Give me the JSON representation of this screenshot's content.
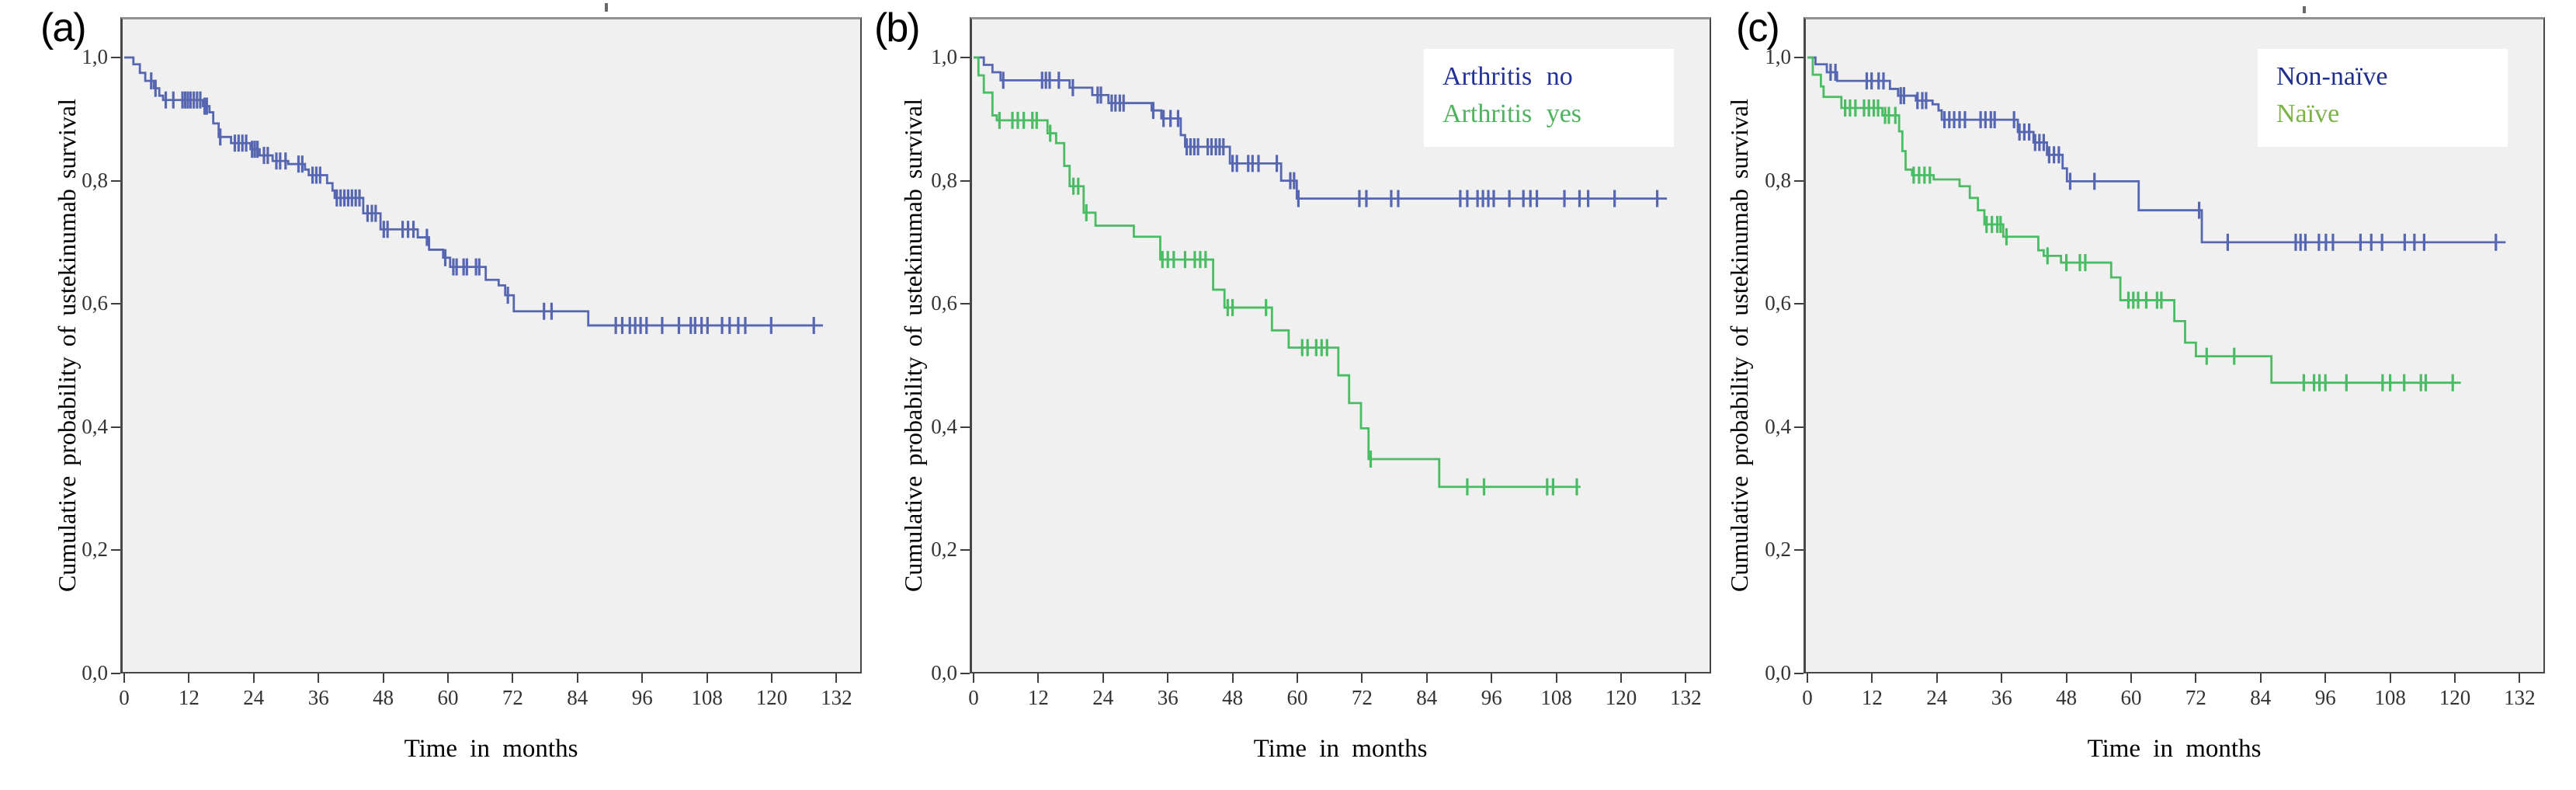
{
  "chart_data": [
    {
      "type": "line",
      "subtype": "kaplan-meier-step",
      "panel_label": "(a)",
      "xlabel": "Time in months",
      "ylabel": "Cumulative probability of ustekinumab survival",
      "xlim": [
        0,
        137
      ],
      "ylim": [
        0,
        1.0
      ],
      "grid": false,
      "x_ticks": [
        0,
        12,
        24,
        36,
        48,
        60,
        72,
        84,
        96,
        108,
        120,
        132
      ],
      "y_ticks": [
        {
          "value": 0.0,
          "label": "0,0"
        },
        {
          "value": 0.2,
          "label": "0,2"
        },
        {
          "value": 0.4,
          "label": "0,4"
        },
        {
          "value": 0.6,
          "label": "0,6"
        },
        {
          "value": 0.8,
          "label": "0,8"
        },
        {
          "value": 1.0,
          "label": "1,0"
        }
      ],
      "legend": null,
      "series": [
        {
          "color": "#5666b0",
          "end_time": 129.5,
          "steps": [
            [
              0,
              1.0
            ],
            [
              1.7,
              0.989
            ],
            [
              2.9,
              0.975
            ],
            [
              3.9,
              0.962
            ],
            [
              5.5,
              0.95
            ],
            [
              6.5,
              0.938
            ],
            [
              7.2,
              0.931
            ],
            [
              14.6,
              0.921
            ],
            [
              15.8,
              0.911
            ],
            [
              16.5,
              0.893
            ],
            [
              17.5,
              0.871
            ],
            [
              19.8,
              0.861
            ],
            [
              23.4,
              0.851
            ],
            [
              25.1,
              0.841
            ],
            [
              27.5,
              0.832
            ],
            [
              30.4,
              0.827
            ],
            [
              33.5,
              0.818
            ],
            [
              34.2,
              0.809
            ],
            [
              37.6,
              0.796
            ],
            [
              38.6,
              0.784
            ],
            [
              39.0,
              0.772
            ],
            [
              44.3,
              0.747
            ],
            [
              47.5,
              0.721
            ],
            [
              54.4,
              0.708
            ],
            [
              56.5,
              0.688
            ],
            [
              59.1,
              0.675
            ],
            [
              60.4,
              0.66
            ],
            [
              67.0,
              0.639
            ],
            [
              69.4,
              0.63
            ],
            [
              70.6,
              0.614
            ],
            [
              72.2,
              0.588
            ],
            [
              86.0,
              0.565
            ]
          ],
          "censor_times": [
            5.0,
            5.8,
            7.7,
            9.1,
            10.8,
            11.3,
            11.8,
            12.3,
            12.9,
            13.5,
            14.1,
            14.9,
            15.3,
            17.8,
            20.5,
            21.2,
            21.9,
            22.6,
            23.7,
            24.2,
            24.7,
            25.9,
            26.6,
            28.2,
            28.9,
            29.9,
            32.3,
            33.0,
            34.9,
            35.6,
            36.3,
            39.4,
            40.1,
            40.8,
            41.5,
            42.2,
            42.9,
            43.6,
            45.1,
            45.9,
            46.6,
            48.1,
            48.8,
            51.6,
            52.6,
            53.6,
            56.1,
            59.5,
            61.0,
            61.6,
            62.9,
            63.5,
            65.2,
            65.8,
            71.1,
            77.8,
            79.2,
            91.1,
            92.3,
            93.7,
            94.7,
            95.7,
            96.8,
            99.7,
            102.8,
            105.0,
            105.8,
            107.0,
            108.1,
            110.8,
            112.2,
            113.8,
            115.1,
            119.9,
            127.8
          ]
        }
      ]
    },
    {
      "type": "line",
      "subtype": "kaplan-meier-step",
      "panel_label": "(b)",
      "xlabel": "Time in months",
      "ylabel": "Cumulative probability of ustekinumab survival",
      "xlim": [
        0,
        137
      ],
      "ylim": [
        0,
        1.0
      ],
      "grid": false,
      "x_ticks": [
        0,
        12,
        24,
        36,
        48,
        60,
        72,
        84,
        96,
        108,
        120,
        132
      ],
      "y_ticks": [
        {
          "value": 0.0,
          "label": "0,0"
        },
        {
          "value": 0.2,
          "label": "0,2"
        },
        {
          "value": 0.4,
          "label": "0,4"
        },
        {
          "value": 0.6,
          "label": "0,6"
        },
        {
          "value": 0.8,
          "label": "0,8"
        },
        {
          "value": 1.0,
          "label": "1,0"
        }
      ],
      "legend": {
        "position": "top-right",
        "items": [
          {
            "label": "Arthritis no",
            "color": "#23309b"
          },
          {
            "label": "Arthritis yes",
            "color": "#4db35e"
          }
        ]
      },
      "series": [
        {
          "name": "Arthritis no",
          "color": "#5666b0",
          "end_time": 128.5,
          "steps": [
            [
              0,
              1.0
            ],
            [
              1.9,
              0.988
            ],
            [
              3.5,
              0.976
            ],
            [
              5.0,
              0.963
            ],
            [
              17.8,
              0.951
            ],
            [
              22.0,
              0.939
            ],
            [
              25.0,
              0.926
            ],
            [
              33.0,
              0.914
            ],
            [
              34.8,
              0.901
            ],
            [
              38.4,
              0.874
            ],
            [
              39.2,
              0.855
            ],
            [
              47.5,
              0.828
            ],
            [
              57.0,
              0.8
            ],
            [
              59.9,
              0.771
            ]
          ],
          "censor_times": [
            5.5,
            12.7,
            13.4,
            14.1,
            15.8,
            18.4,
            23.0,
            23.6,
            25.6,
            26.3,
            27.1,
            27.8,
            33.3,
            35.2,
            36.5,
            37.9,
            39.5,
            40.2,
            40.9,
            41.6,
            43.4,
            44.1,
            44.9,
            45.6,
            46.3,
            48.0,
            48.8,
            50.9,
            51.7,
            52.8,
            56.2,
            58.7,
            59.4,
            60.2,
            71.5,
            72.8,
            77.4,
            78.7,
            90.2,
            91.5,
            93.4,
            94.4,
            95.4,
            96.4,
            99.3,
            101.9,
            103.2,
            104.4,
            109.5,
            112.3,
            113.9,
            118.8,
            126.7
          ]
        },
        {
          "name": "Arthritis yes",
          "color": "#4abc64",
          "end_time": 112.5,
          "steps": [
            [
              0,
              1.0
            ],
            [
              0.9,
              0.971
            ],
            [
              1.9,
              0.943
            ],
            [
              3.5,
              0.906
            ],
            [
              4.3,
              0.898
            ],
            [
              13.7,
              0.877
            ],
            [
              15.3,
              0.861
            ],
            [
              16.8,
              0.824
            ],
            [
              17.8,
              0.791
            ],
            [
              20.4,
              0.748
            ],
            [
              22.6,
              0.727
            ],
            [
              29.7,
              0.709
            ],
            [
              34.6,
              0.672
            ],
            [
              44.4,
              0.623
            ],
            [
              46.5,
              0.594
            ],
            [
              55.3,
              0.557
            ],
            [
              58.4,
              0.529
            ],
            [
              67.6,
              0.484
            ],
            [
              69.6,
              0.439
            ],
            [
              71.8,
              0.398
            ],
            [
              73.2,
              0.348
            ],
            [
              86.3,
              0.303
            ]
          ],
          "censor_times": [
            4.8,
            7.2,
            8.2,
            9.3,
            10.9,
            11.7,
            14.2,
            18.5,
            19.4,
            20.9,
            35.0,
            36.0,
            37.1,
            39.2,
            41.0,
            42.0,
            43.0,
            47.1,
            48.0,
            54.2,
            60.9,
            61.9,
            63.5,
            64.5,
            65.5,
            73.6,
            91.5,
            94.6,
            106.3,
            107.4,
            111.8
          ]
        }
      ]
    },
    {
      "type": "line",
      "subtype": "kaplan-meier-step",
      "panel_label": "(c)",
      "xlabel": "Time in months",
      "ylabel": "Cumulative probability of ustekinumab survival",
      "xlim": [
        0,
        137
      ],
      "ylim": [
        0,
        1.0
      ],
      "grid": false,
      "x_ticks": [
        0,
        12,
        24,
        36,
        48,
        60,
        72,
        84,
        96,
        108,
        120,
        132
      ],
      "y_ticks": [
        {
          "value": 0.0,
          "label": "0,0"
        },
        {
          "value": 0.2,
          "label": "0,2"
        },
        {
          "value": 0.4,
          "label": "0,4"
        },
        {
          "value": 0.6,
          "label": "0,6"
        },
        {
          "value": 0.8,
          "label": "0,8"
        },
        {
          "value": 1.0,
          "label": "1,0"
        }
      ],
      "legend": {
        "position": "top-right",
        "items": [
          {
            "label": "Non-naïve",
            "color": "#1d2e8e"
          },
          {
            "label": "Naïve",
            "color": "#7cb347"
          }
        ]
      },
      "series": [
        {
          "name": "Non-naïve",
          "color": "#5666b0",
          "end_time": 129.4,
          "steps": [
            [
              0,
              1.0
            ],
            [
              1.5,
              0.989
            ],
            [
              3.6,
              0.976
            ],
            [
              5.5,
              0.962
            ],
            [
              15.3,
              0.949
            ],
            [
              16.8,
              0.938
            ],
            [
              20.1,
              0.93
            ],
            [
              23.2,
              0.924
            ],
            [
              24.3,
              0.914
            ],
            [
              24.9,
              0.899
            ],
            [
              39.0,
              0.879
            ],
            [
              41.9,
              0.862
            ],
            [
              44.4,
              0.842
            ],
            [
              47.3,
              0.82
            ],
            [
              48.1,
              0.799
            ],
            [
              61.4,
              0.752
            ],
            [
              73.1,
              0.7
            ]
          ],
          "censor_times": [
            4.3,
            5.2,
            11.0,
            11.9,
            13.2,
            14.1,
            17.3,
            17.9,
            20.4,
            21.3,
            22.0,
            25.4,
            26.3,
            27.2,
            28.2,
            29.2,
            32.1,
            33.0,
            34.0,
            34.7,
            38.3,
            39.3,
            40.2,
            41.1,
            42.2,
            43.0,
            43.8,
            44.8,
            45.7,
            46.6,
            48.7,
            53.2,
            72.6,
            77.9,
            90.5,
            91.4,
            92.3,
            94.8,
            96.1,
            97.4,
            102.5,
            104.5,
            106.5,
            110.7,
            112.5,
            114.3,
            127.6
          ]
        },
        {
          "name": "Naïve",
          "color": "#4abc64",
          "end_time": 121.1,
          "steps": [
            [
              0,
              1.0
            ],
            [
              1.0,
              0.972
            ],
            [
              2.5,
              0.953
            ],
            [
              3.0,
              0.936
            ],
            [
              6.3,
              0.918
            ],
            [
              13.9,
              0.906
            ],
            [
              17.0,
              0.88
            ],
            [
              17.6,
              0.848
            ],
            [
              18.2,
              0.818
            ],
            [
              19.4,
              0.809
            ],
            [
              23.4,
              0.802
            ],
            [
              28.2,
              0.791
            ],
            [
              30.1,
              0.772
            ],
            [
              31.6,
              0.752
            ],
            [
              32.8,
              0.729
            ],
            [
              36.3,
              0.709
            ],
            [
              42.8,
              0.687
            ],
            [
              43.8,
              0.678
            ],
            [
              47.0,
              0.667
            ],
            [
              56.3,
              0.643
            ],
            [
              58.0,
              0.606
            ],
            [
              68.0,
              0.572
            ],
            [
              70.0,
              0.537
            ],
            [
              72.0,
              0.515
            ],
            [
              86.0,
              0.472
            ]
          ],
          "censor_times": [
            7.0,
            7.9,
            8.9,
            10.5,
            11.4,
            12.3,
            13.1,
            14.4,
            15.1,
            16.3,
            19.7,
            20.7,
            21.7,
            22.7,
            33.2,
            34.2,
            35.2,
            35.8,
            36.9,
            44.5,
            48.0,
            50.5,
            51.5,
            59.5,
            60.4,
            61.3,
            62.8,
            64.8,
            65.6,
            74.0,
            79.1,
            92.0,
            93.9,
            94.9,
            96.0,
            99.9,
            106.6,
            108.0,
            110.6,
            113.7,
            114.6,
            119.6
          ]
        }
      ]
    }
  ]
}
